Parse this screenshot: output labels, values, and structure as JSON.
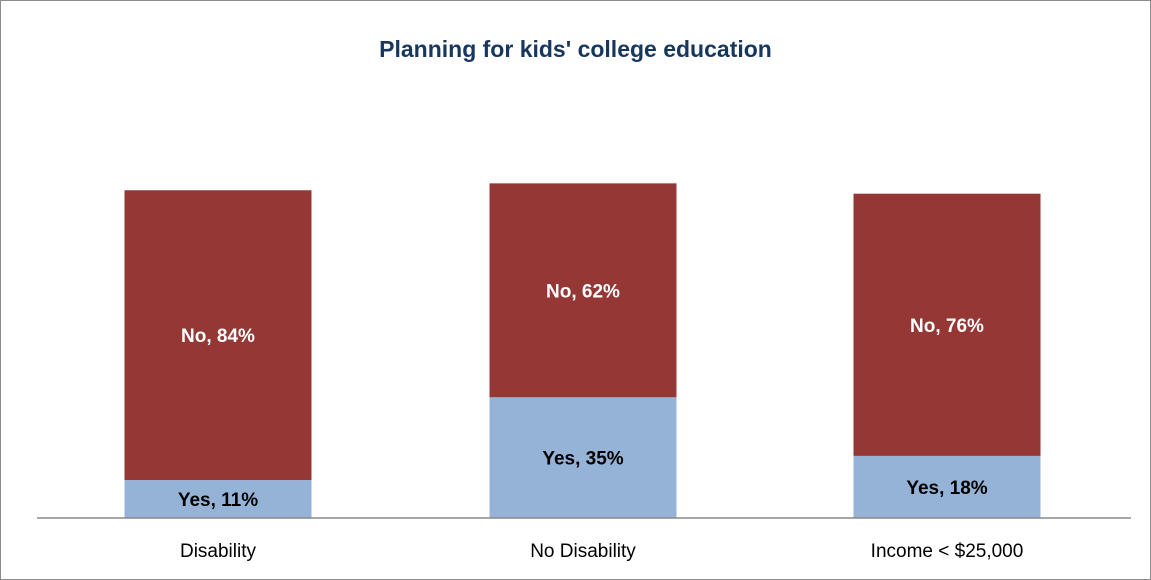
{
  "chart_data": {
    "type": "bar",
    "stacked": true,
    "title": "Planning for kids' college education",
    "categories": [
      "Disability",
      "No Disability",
      "Income < $25,000"
    ],
    "series": [
      {
        "name": "Yes",
        "values": [
          11,
          35,
          18
        ],
        "labels": [
          "Yes, 11%",
          "Yes, 35%",
          "Yes, 18%"
        ],
        "color": "#95b3d7",
        "label_color": "#000000"
      },
      {
        "name": "No",
        "values": [
          84,
          62,
          76
        ],
        "labels": [
          "No, 84%",
          "No, 62%",
          "No, 76%"
        ],
        "color": "#953735",
        "label_color": "#ffffff"
      }
    ],
    "xlabel": "",
    "ylabel": "",
    "ylim": [
      0,
      100
    ],
    "grid": false,
    "legend": "none"
  }
}
